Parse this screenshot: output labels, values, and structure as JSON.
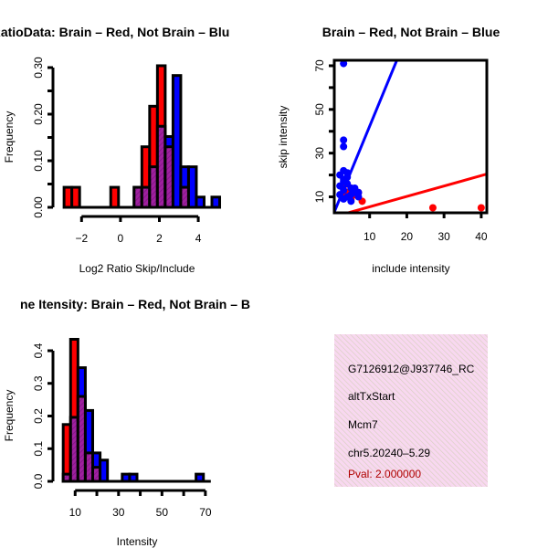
{
  "colors": {
    "brain": "#ff0000",
    "not_brain": "#0000ff",
    "overlap": "#a020a0",
    "pval": "#b00000",
    "box": "#f8d8f0"
  },
  "chart_data": [
    {
      "type": "bar",
      "title": "RatioData: Brain – Red, Not Brain – Blu",
      "xlabel": "Log2 Ratio Skip/Include",
      "ylabel": "Frequency",
      "xticks": [
        "-2",
        "0",
        "2",
        "4"
      ],
      "xtick_values": [
        -2,
        0,
        2,
        4
      ],
      "yticks": [
        "0.00",
        "0.10",
        "0.20",
        "0.30"
      ],
      "ytick_values": [
        0,
        0.05,
        0.1,
        0.15,
        0.2,
        0.25,
        0.3
      ],
      "ylabel_values": [
        0,
        0.1,
        0.2,
        0.3
      ],
      "xlim": [
        -3,
        4.7
      ],
      "ylim": [
        0,
        0.3
      ],
      "bin_start": -2.9,
      "bin_width": 0.4,
      "series": [
        {
          "name": "Brain",
          "values": [
            0.043,
            0.043,
            0,
            0,
            0,
            0,
            0.043,
            0,
            0,
            0.043,
            0.13,
            0.217,
            0.304,
            0.13,
            0,
            0.043,
            0,
            0,
            0,
            0
          ]
        },
        {
          "name": "Not Brain",
          "values": [
            0,
            0,
            0,
            0,
            0,
            0,
            0,
            0,
            0,
            0.043,
            0.043,
            0.087,
            0.174,
            0.152,
            0.283,
            0.087,
            0.087,
            0.022,
            0,
            0.022
          ]
        }
      ]
    },
    {
      "type": "scatter",
      "title": "Brain – Red, Not Brain – Blue",
      "xlabel": "include intensity",
      "ylabel": "skip intensity",
      "xticks": [
        "10",
        "20",
        "30",
        "40"
      ],
      "yticks": [
        "10",
        "30",
        "50",
        "70"
      ],
      "ytick_values": [
        10,
        20,
        30,
        40,
        50,
        60,
        70
      ],
      "ylabel_values": [
        10,
        30,
        50,
        70
      ],
      "xlim": [
        0.5,
        41.5
      ],
      "ylim": [
        2.7,
        72.5
      ],
      "series": [
        {
          "name": "Brain",
          "points": [
            [
              3,
              10
            ],
            [
              4,
              12
            ],
            [
              5,
              9
            ],
            [
              6,
              11
            ],
            [
              7,
              12
            ],
            [
              8,
              8
            ],
            [
              27,
              5
            ],
            [
              40,
              5
            ],
            [
              3,
              15
            ],
            [
              5,
              14
            ]
          ],
          "line": {
            "intercept": 0.7,
            "slope": 0.475
          }
        },
        {
          "name": "Not Brain",
          "points": [
            [
              3,
              71
            ],
            [
              3,
              36
            ],
            [
              3,
              33
            ],
            [
              2,
              20
            ],
            [
              3,
              22
            ],
            [
              3,
              18
            ],
            [
              4,
              21
            ],
            [
              2,
              15
            ],
            [
              3,
              13
            ],
            [
              4,
              16
            ],
            [
              5,
              14
            ],
            [
              6,
              13
            ],
            [
              7,
              12
            ],
            [
              4,
              10
            ],
            [
              3,
              9
            ],
            [
              5,
              8
            ],
            [
              6,
              12
            ],
            [
              2,
              11
            ],
            [
              4,
              19
            ],
            [
              3,
              17
            ],
            [
              5,
              11
            ],
            [
              7,
              10
            ],
            [
              6,
              14
            ]
          ],
          "line": {
            "intercept": 1,
            "slope": 4.13
          }
        }
      ]
    },
    {
      "type": "bar",
      "title": "ne Itensity: Brain – Red, Not Brain – B",
      "xlabel": "Intensity",
      "ylabel": "Frequency",
      "xticks": [
        "10",
        "30",
        "50",
        "70"
      ],
      "xtick_values": [
        10,
        20,
        30,
        40,
        50,
        60,
        70
      ],
      "xlabel_values": [
        10,
        30,
        50,
        70
      ],
      "yticks": [
        "0.0",
        "0.1",
        "0.2",
        "0.3",
        "0.4"
      ],
      "ytick_values": [
        0,
        0.1,
        0.2,
        0.3,
        0.4
      ],
      "xlim": [
        4,
        73
      ],
      "ylim": [
        0,
        0.4
      ],
      "bin_start": 4.5,
      "bin_width": 3.4,
      "series": [
        {
          "name": "Brain",
          "values": [
            0.174,
            0.435,
            0.26,
            0.087,
            0.043,
            0,
            0,
            0,
            0,
            0,
            0,
            0,
            0,
            0,
            0,
            0,
            0,
            0,
            0,
            0
          ]
        },
        {
          "name": "Not Brain",
          "values": [
            0.022,
            0.196,
            0.348,
            0.217,
            0.087,
            0.065,
            0,
            0,
            0.022,
            0.022,
            0,
            0,
            0,
            0,
            0,
            0,
            0,
            0,
            0.022,
            0
          ]
        }
      ]
    }
  ],
  "info_box": {
    "id": "G7126912@J937746_RC",
    "event_type": "altTxStart",
    "gene": "Mcm7",
    "location": "chr5.20240–5.29",
    "pval": "Pval: 2.000000"
  }
}
